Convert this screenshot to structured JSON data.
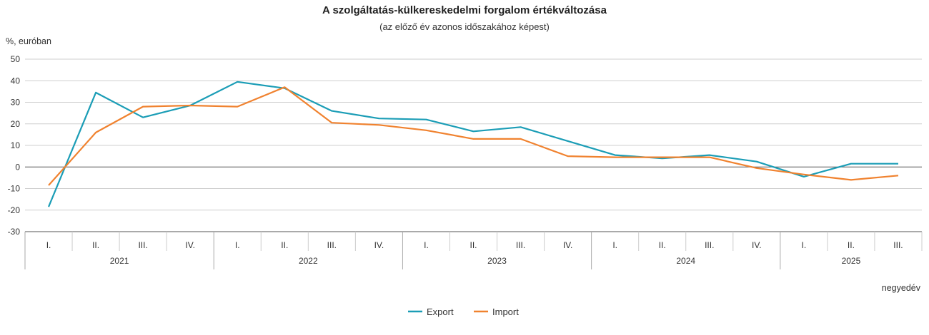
{
  "chart_data": {
    "type": "line",
    "title": "A szolgáltatás-külkereskedelmi forgalom értékváltozása",
    "subtitle": "(az előző év azonos időszakához képest)",
    "ylabel": "%, euróban",
    "xlabel": "negyedév",
    "ylim": [
      -30,
      50
    ],
    "yticks": [
      50,
      40,
      30,
      20,
      10,
      0,
      -10,
      -20,
      -30
    ],
    "grid": true,
    "legend_position": "bottom-center",
    "years": [
      {
        "label": "2021",
        "quarters": [
          "I.",
          "II.",
          "III.",
          "IV."
        ]
      },
      {
        "label": "2022",
        "quarters": [
          "I.",
          "II.",
          "III.",
          "IV."
        ]
      },
      {
        "label": "2023",
        "quarters": [
          "I.",
          "II.",
          "III.",
          "IV."
        ]
      },
      {
        "label": "2024",
        "quarters": [
          "I.",
          "II.",
          "III.",
          "IV."
        ]
      },
      {
        "label": "2025",
        "quarters": [
          "I.",
          "II.",
          "III."
        ]
      }
    ],
    "series": [
      {
        "name": "Export",
        "color": "#1b9db6",
        "values": [
          -18.5,
          34.5,
          23,
          28.5,
          39.5,
          36.5,
          26,
          22.5,
          22,
          16.5,
          18.5,
          12,
          5.5,
          4,
          5.5,
          2.5,
          -4.5,
          1.5,
          1.5
        ]
      },
      {
        "name": "Import",
        "color": "#f0822f",
        "values": [
          -8.5,
          16,
          28,
          28.5,
          28,
          37,
          20.5,
          19.5,
          17,
          13,
          13,
          5,
          4.5,
          4.5,
          4.5,
          -0.5,
          -3.5,
          -6,
          -4
        ]
      }
    ]
  }
}
